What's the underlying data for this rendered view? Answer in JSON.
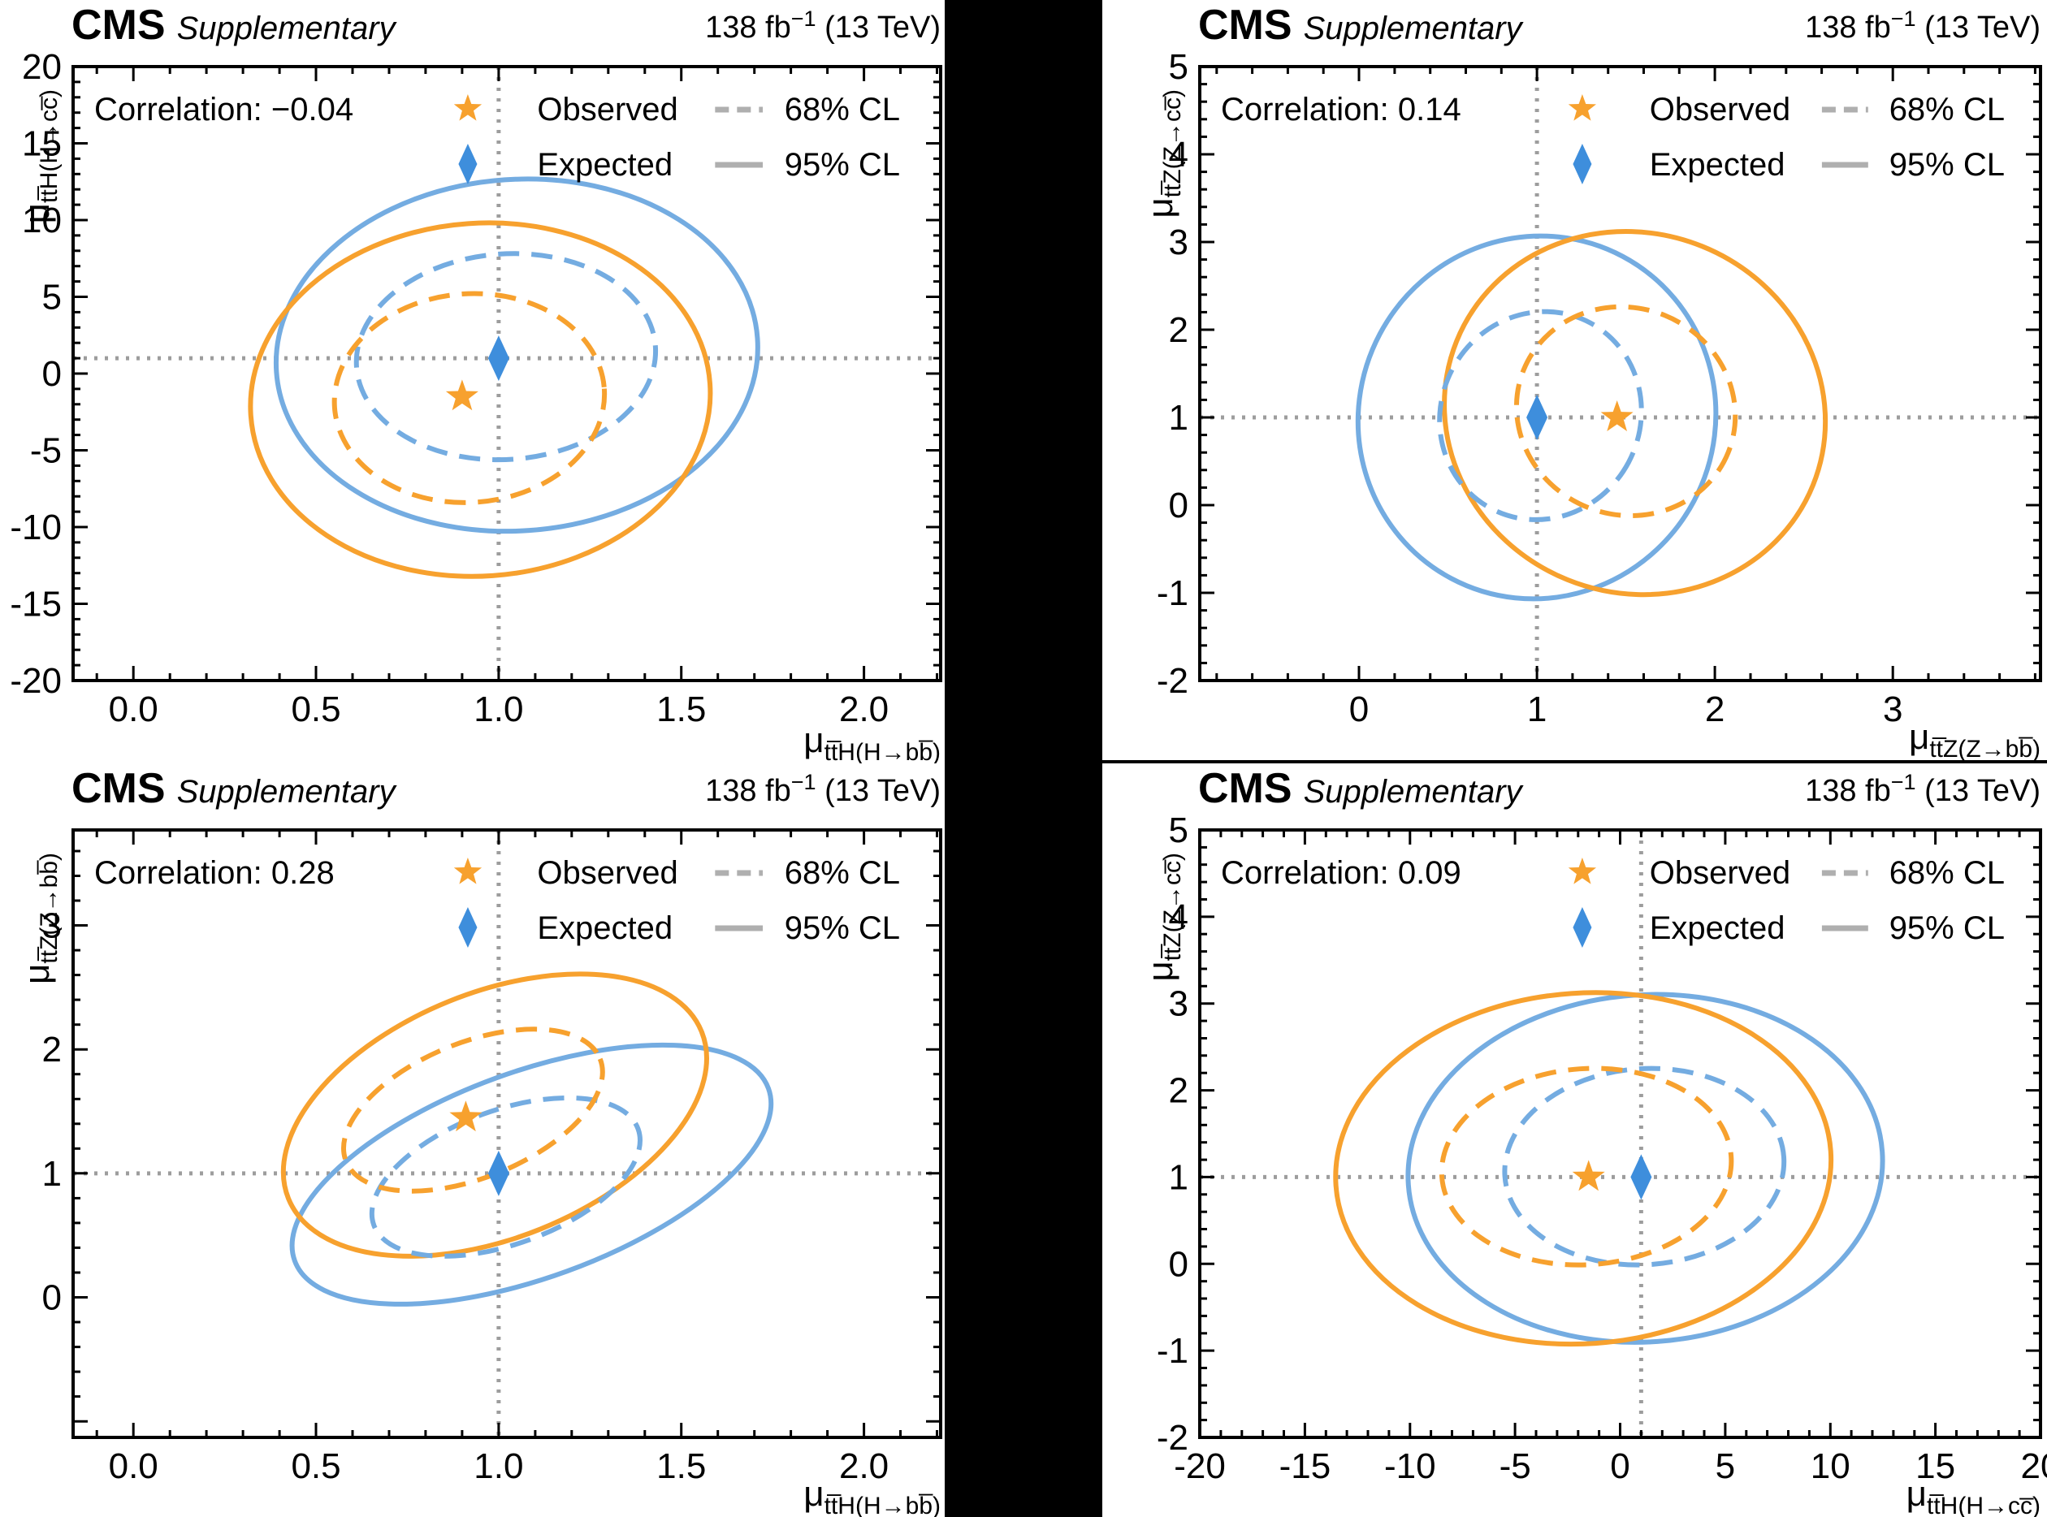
{
  "header": {
    "experiment": "CMS",
    "sublabel": "Supplementary",
    "lumi_prefix": "138 fb",
    "lumi_sup": "−1",
    "lumi_suffix": " (13 TeV)"
  },
  "legend": {
    "observed_label": "Observed",
    "expected_label": "Expected",
    "cl68_label": "68% CL",
    "cl95_label": "95% CL"
  },
  "colors": {
    "observed": "#F7A12E",
    "expected_line": "#74ACE1",
    "expected_marker": "#3E8EDC",
    "crosshair": "#9D9D9D",
    "legend_line": "#AFAFAF",
    "frame": "#000000",
    "panel_bg": "#FFFFFF",
    "page_bg": "#000000"
  },
  "chart_data": [
    {
      "id": "ttHbb-vs-ttHcc",
      "type": "contour",
      "slot": "tl",
      "correlation_label": "Correlation: −0.04",
      "correlation": -0.04,
      "x_axis": {
        "title_mu": "μ",
        "title_sub": "tt̅H(H→bb̅)",
        "min": -0.165,
        "max": 2.21,
        "majors": [
          0,
          0.5,
          1.0,
          1.5,
          2.0
        ],
        "labels": [
          "0.0",
          "0.5",
          "1.0",
          "1.5",
          "2.0"
        ],
        "minor_step": 0.1
      },
      "y_axis": {
        "title_mu": "μ",
        "title_sub": "tt̅H(H→cc̅)",
        "min": -20,
        "max": 20,
        "majors": [
          -20,
          -15,
          -10,
          -5,
          0,
          5,
          10,
          15,
          20
        ],
        "labels": [
          "-20",
          "-15",
          "-10",
          "-5",
          "0",
          "5",
          "10",
          "15",
          "20"
        ],
        "minor_step": 1
      },
      "sm_point": {
        "x": 1,
        "y": 1
      },
      "expected_best_fit": {
        "x": 1.0,
        "y": 1.0
      },
      "observed_best_fit": {
        "x": 0.9,
        "y": -1.5
      },
      "contours": {
        "expected_95": {
          "cx": 1.05,
          "cy": 1.2,
          "rx": 0.66,
          "ry": 11.45,
          "rot": -4
        },
        "observed_95": {
          "cx": 0.95,
          "cy": -1.7,
          "rx": 0.63,
          "ry": 11.5,
          "rot": -4
        },
        "expected_68": {
          "cx": 1.02,
          "cy": 1.1,
          "rx": 0.41,
          "ry": 6.7,
          "rot": -4
        },
        "observed_68": {
          "cx": 0.92,
          "cy": -1.6,
          "rx": 0.37,
          "ry": 6.8,
          "rot": -4
        }
      }
    },
    {
      "id": "ttZbb-vs-ttZcc",
      "type": "contour",
      "slot": "tr",
      "correlation_label": "Correlation: 0.14",
      "correlation": 0.14,
      "x_axis": {
        "title_mu": "μ",
        "title_sub": "tt̅Z(Z→bb̅)",
        "min": -0.895,
        "max": 3.83,
        "majors": [
          0,
          1,
          2,
          3
        ],
        "labels": [
          "0",
          "1",
          "2",
          "3"
        ],
        "minor_step": 0.2
      },
      "y_axis": {
        "title_mu": "μ",
        "title_sub": "tt̅Z(Z→cc̅)",
        "min": -2,
        "max": 5,
        "majors": [
          -2,
          -1,
          0,
          1,
          2,
          3,
          4,
          5
        ],
        "labels": [
          "-2",
          "-1",
          "0",
          "1",
          "2",
          "3",
          "4",
          "5"
        ],
        "minor_step": 0.2
      },
      "sm_point": {
        "x": 1,
        "y": 1
      },
      "expected_best_fit": {
        "x": 1.0,
        "y": 1.0
      },
      "observed_best_fit": {
        "x": 1.45,
        "y": 1.0
      },
      "contours": {
        "expected_95": {
          "cx": 1.0,
          "cy": 1.0,
          "rx": 1.0,
          "ry": 2.08,
          "rot": 28
        },
        "observed_95": {
          "cx": 1.55,
          "cy": 1.05,
          "rx": 1.08,
          "ry": 2.05,
          "rot": 22
        },
        "expected_68": {
          "cx": 1.02,
          "cy": 1.02,
          "rx": 0.56,
          "ry": 1.2,
          "rot": 28
        },
        "observed_68": {
          "cx": 1.5,
          "cy": 1.07,
          "rx": 0.62,
          "ry": 1.18,
          "rot": 22
        }
      }
    },
    {
      "id": "ttHbb-vs-ttZbb",
      "type": "contour",
      "slot": "bl",
      "correlation_label": "Correlation: 0.28",
      "correlation": 0.28,
      "x_axis": {
        "title_mu": "μ",
        "title_sub": "tt̅H(H→bb̅)",
        "min": -0.165,
        "max": 2.21,
        "majors": [
          0,
          0.5,
          1.0,
          1.5,
          2.0
        ],
        "labels": [
          "0.0",
          "0.5",
          "1.0",
          "1.5",
          "2.0"
        ],
        "minor_step": 0.1
      },
      "y_axis": {
        "title_mu": "μ",
        "title_sub": "tt̅Z(Z→bb̅)",
        "min": -1.13,
        "max": 3.77,
        "majors": [
          -1,
          0,
          1,
          2,
          3
        ],
        "labels": [
          "",
          "0",
          "1",
          "2",
          "3"
        ],
        "minor_step": 0.2
      },
      "sm_point": {
        "x": 1,
        "y": 1
      },
      "expected_best_fit": {
        "x": 1.0,
        "y": 1.0
      },
      "observed_best_fit": {
        "x": 0.91,
        "y": 1.45
      },
      "contours": {
        "expected_95": {
          "cx": 1.09,
          "cy": 0.99,
          "rx": 0.69,
          "ry": 0.83,
          "rot": -20
        },
        "observed_95": {
          "cx": 0.99,
          "cy": 1.47,
          "rx": 0.61,
          "ry": 0.99,
          "rot": -22
        },
        "expected_68": {
          "cx": 1.02,
          "cy": 0.97,
          "rx": 0.385,
          "ry": 0.54,
          "rot": -20
        },
        "observed_68": {
          "cx": 0.93,
          "cy": 1.51,
          "rx": 0.375,
          "ry": 0.545,
          "rot": -22
        }
      }
    },
    {
      "id": "ttHcc-vs-ttZcc",
      "type": "contour",
      "slot": "br",
      "correlation_label": "Correlation: 0.09",
      "correlation": 0.09,
      "x_axis": {
        "title_mu": "μ",
        "title_sub": "tt̅H(H→cc̅)",
        "min": -20,
        "max": 20,
        "majors": [
          -20,
          -15,
          -10,
          -5,
          0,
          5,
          10,
          15,
          20
        ],
        "labels": [
          "-20",
          "-15",
          "-10",
          "-5",
          "0",
          "5",
          "10",
          "15",
          "20"
        ],
        "minor_step": 1
      },
      "y_axis": {
        "title_mu": "μ",
        "title_sub": "tt̅Z(Z→cc̅)",
        "min": -2,
        "max": 5,
        "majors": [
          -2,
          -1,
          0,
          1,
          2,
          3,
          4,
          5
        ],
        "labels": [
          "-2",
          "-1",
          "0",
          "1",
          "2",
          "3",
          "4",
          "5"
        ],
        "minor_step": 0.2
      },
      "sm_point": {
        "x": 1,
        "y": 1
      },
      "expected_best_fit": {
        "x": 1.0,
        "y": 1.0
      },
      "observed_best_fit": {
        "x": -1.5,
        "y": 1.0
      },
      "contours": {
        "expected_95": {
          "cx": 1.2,
          "cy": 1.1,
          "rx": 11.3,
          "ry": 2.0,
          "rot": -4
        },
        "observed_95": {
          "cx": -1.75,
          "cy": 1.1,
          "rx": 11.8,
          "ry": 2.02,
          "rot": -4
        },
        "expected_68": {
          "cx": 1.15,
          "cy": 1.12,
          "rx": 6.65,
          "ry": 1.13,
          "rot": -4
        },
        "observed_68": {
          "cx": -1.6,
          "cy": 1.12,
          "rx": 6.9,
          "ry": 1.13,
          "rot": -4
        }
      }
    }
  ]
}
